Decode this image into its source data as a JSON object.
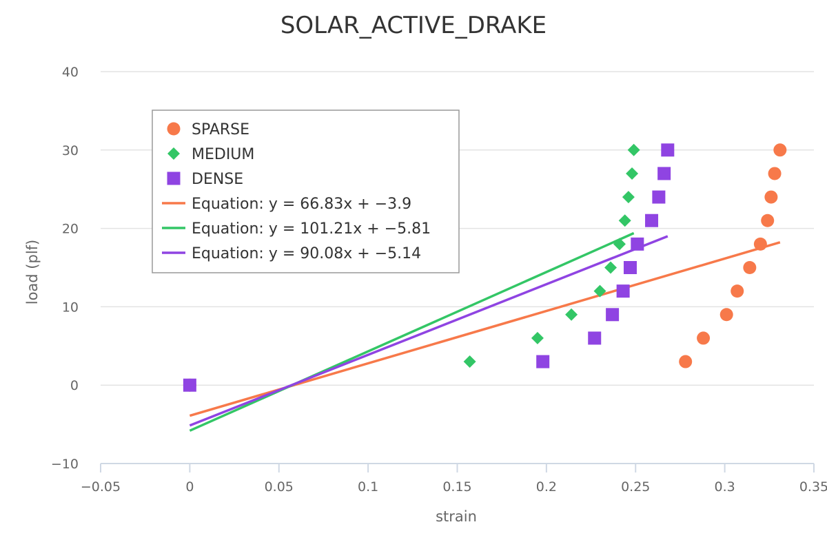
{
  "chart_data": {
    "type": "scatter",
    "title": "SOLAR_ACTIVE_DRAKE",
    "xlabel": "strain",
    "ylabel": "load (plf)",
    "xlim": [
      -0.05,
      0.35
    ],
    "ylim": [
      -10,
      40
    ],
    "x_ticks": [
      "−0.05",
      "0",
      "0.05",
      "0.1",
      "0.15",
      "0.2",
      "0.25",
      "0.3",
      "0.35"
    ],
    "y_ticks": [
      "−10",
      "0",
      "10",
      "20",
      "30",
      "40"
    ],
    "grid": true,
    "legend_position": "upper-left",
    "series": [
      {
        "name": "SPARSE",
        "marker": "circle",
        "color": "#f7794a",
        "points": [
          [
            0,
            0
          ],
          [
            0.278,
            3
          ],
          [
            0.288,
            6
          ],
          [
            0.301,
            9
          ],
          [
            0.307,
            12
          ],
          [
            0.314,
            15
          ],
          [
            0.32,
            18
          ],
          [
            0.324,
            21
          ],
          [
            0.326,
            24
          ],
          [
            0.328,
            27
          ],
          [
            0.331,
            30
          ]
        ]
      },
      {
        "name": "MEDIUM",
        "marker": "diamond",
        "color": "#33c666",
        "points": [
          [
            0,
            0
          ],
          [
            0.157,
            3
          ],
          [
            0.195,
            6
          ],
          [
            0.214,
            9
          ],
          [
            0.23,
            12
          ],
          [
            0.236,
            15
          ],
          [
            0.241,
            18
          ],
          [
            0.244,
            21
          ],
          [
            0.246,
            24
          ],
          [
            0.248,
            27
          ],
          [
            0.249,
            30
          ]
        ]
      },
      {
        "name": "DENSE",
        "marker": "square",
        "color": "#8f44e2",
        "points": [
          [
            0,
            0
          ],
          [
            0.198,
            3
          ],
          [
            0.227,
            6
          ],
          [
            0.237,
            9
          ],
          [
            0.243,
            12
          ],
          [
            0.247,
            15
          ],
          [
            0.251,
            18
          ],
          [
            0.259,
            21
          ],
          [
            0.263,
            24
          ],
          [
            0.266,
            27
          ],
          [
            0.268,
            30
          ]
        ]
      }
    ],
    "trendlines": [
      {
        "name": "Equation: y = 66.83x + −3.9",
        "color": "#f7794a",
        "slope": 66.83,
        "intercept": -3.9,
        "x_range": [
          0,
          0.331
        ]
      },
      {
        "name": "Equation: y = 101.21x + −5.81",
        "color": "#33c666",
        "slope": 101.21,
        "intercept": -5.81,
        "x_range": [
          0,
          0.249
        ]
      },
      {
        "name": "Equation: y = 90.08x + −5.14",
        "color": "#8f44e2",
        "slope": 90.08,
        "intercept": -5.14,
        "x_range": [
          0,
          0.268
        ]
      }
    ]
  }
}
